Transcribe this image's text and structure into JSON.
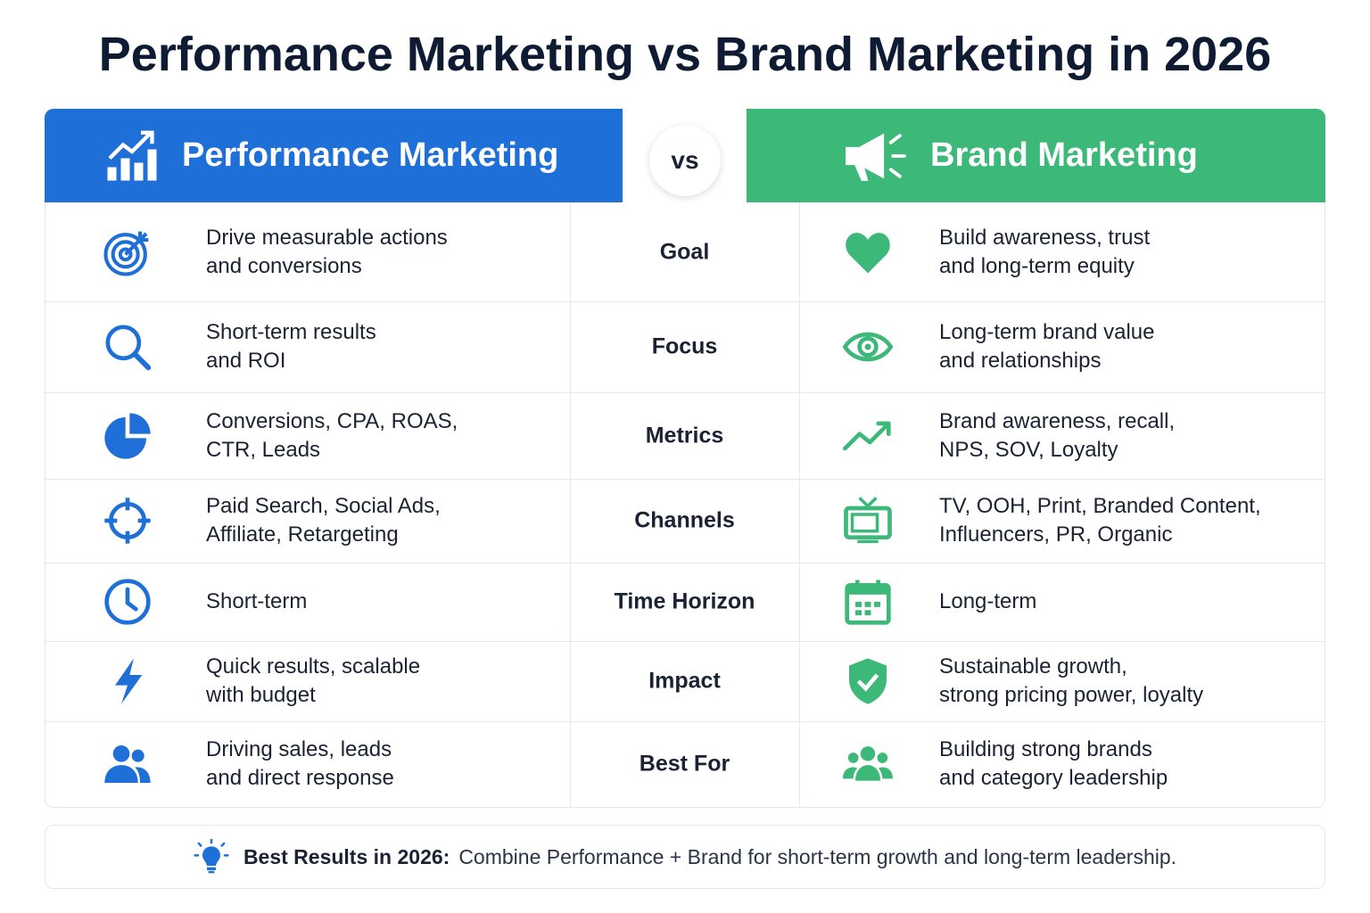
{
  "title": "Performance Marketing vs Brand Marketing in 2026",
  "header": {
    "left": "Performance Marketing",
    "vs": "vs",
    "right": "Brand Marketing"
  },
  "rows": [
    {
      "left": [
        "Drive measurable actions",
        "and conversions"
      ],
      "label": "Goal",
      "right": [
        "Build awareness, trust",
        "and long-term equity"
      ]
    },
    {
      "left": [
        "Short-term results",
        "and ROI"
      ],
      "label": "Focus",
      "right": [
        "Long-term brand value",
        "and relationships"
      ]
    },
    {
      "left": [
        "Conversions, CPA, ROAS,",
        "CTR, Leads"
      ],
      "label": "Metrics",
      "right": [
        "Brand awareness, recall,",
        "NPS, SOV, Loyalty"
      ]
    },
    {
      "left": [
        "Paid Search, Social Ads,",
        "Affiliate, Retargeting"
      ],
      "label": "Channels",
      "right": [
        "TV, OOH, Print, Branded Content,",
        "Influencers, PR, Organic"
      ]
    },
    {
      "left": [
        "Short-term"
      ],
      "label": "Time Horizon",
      "right": [
        "Long-term"
      ]
    },
    {
      "left": [
        "Quick results, scalable",
        "with budget"
      ],
      "label": "Impact",
      "right": [
        "Sustainable growth,",
        "strong pricing power, loyalty"
      ]
    },
    {
      "left": [
        "Driving sales, leads",
        "and direct response"
      ],
      "label": "Best For",
      "right": [
        "Building strong brands",
        "and category leadership"
      ]
    }
  ],
  "footer": {
    "bold": "Best Results in 2026:",
    "text": "Combine Performance + Brand for short-term growth and long-term leadership."
  }
}
